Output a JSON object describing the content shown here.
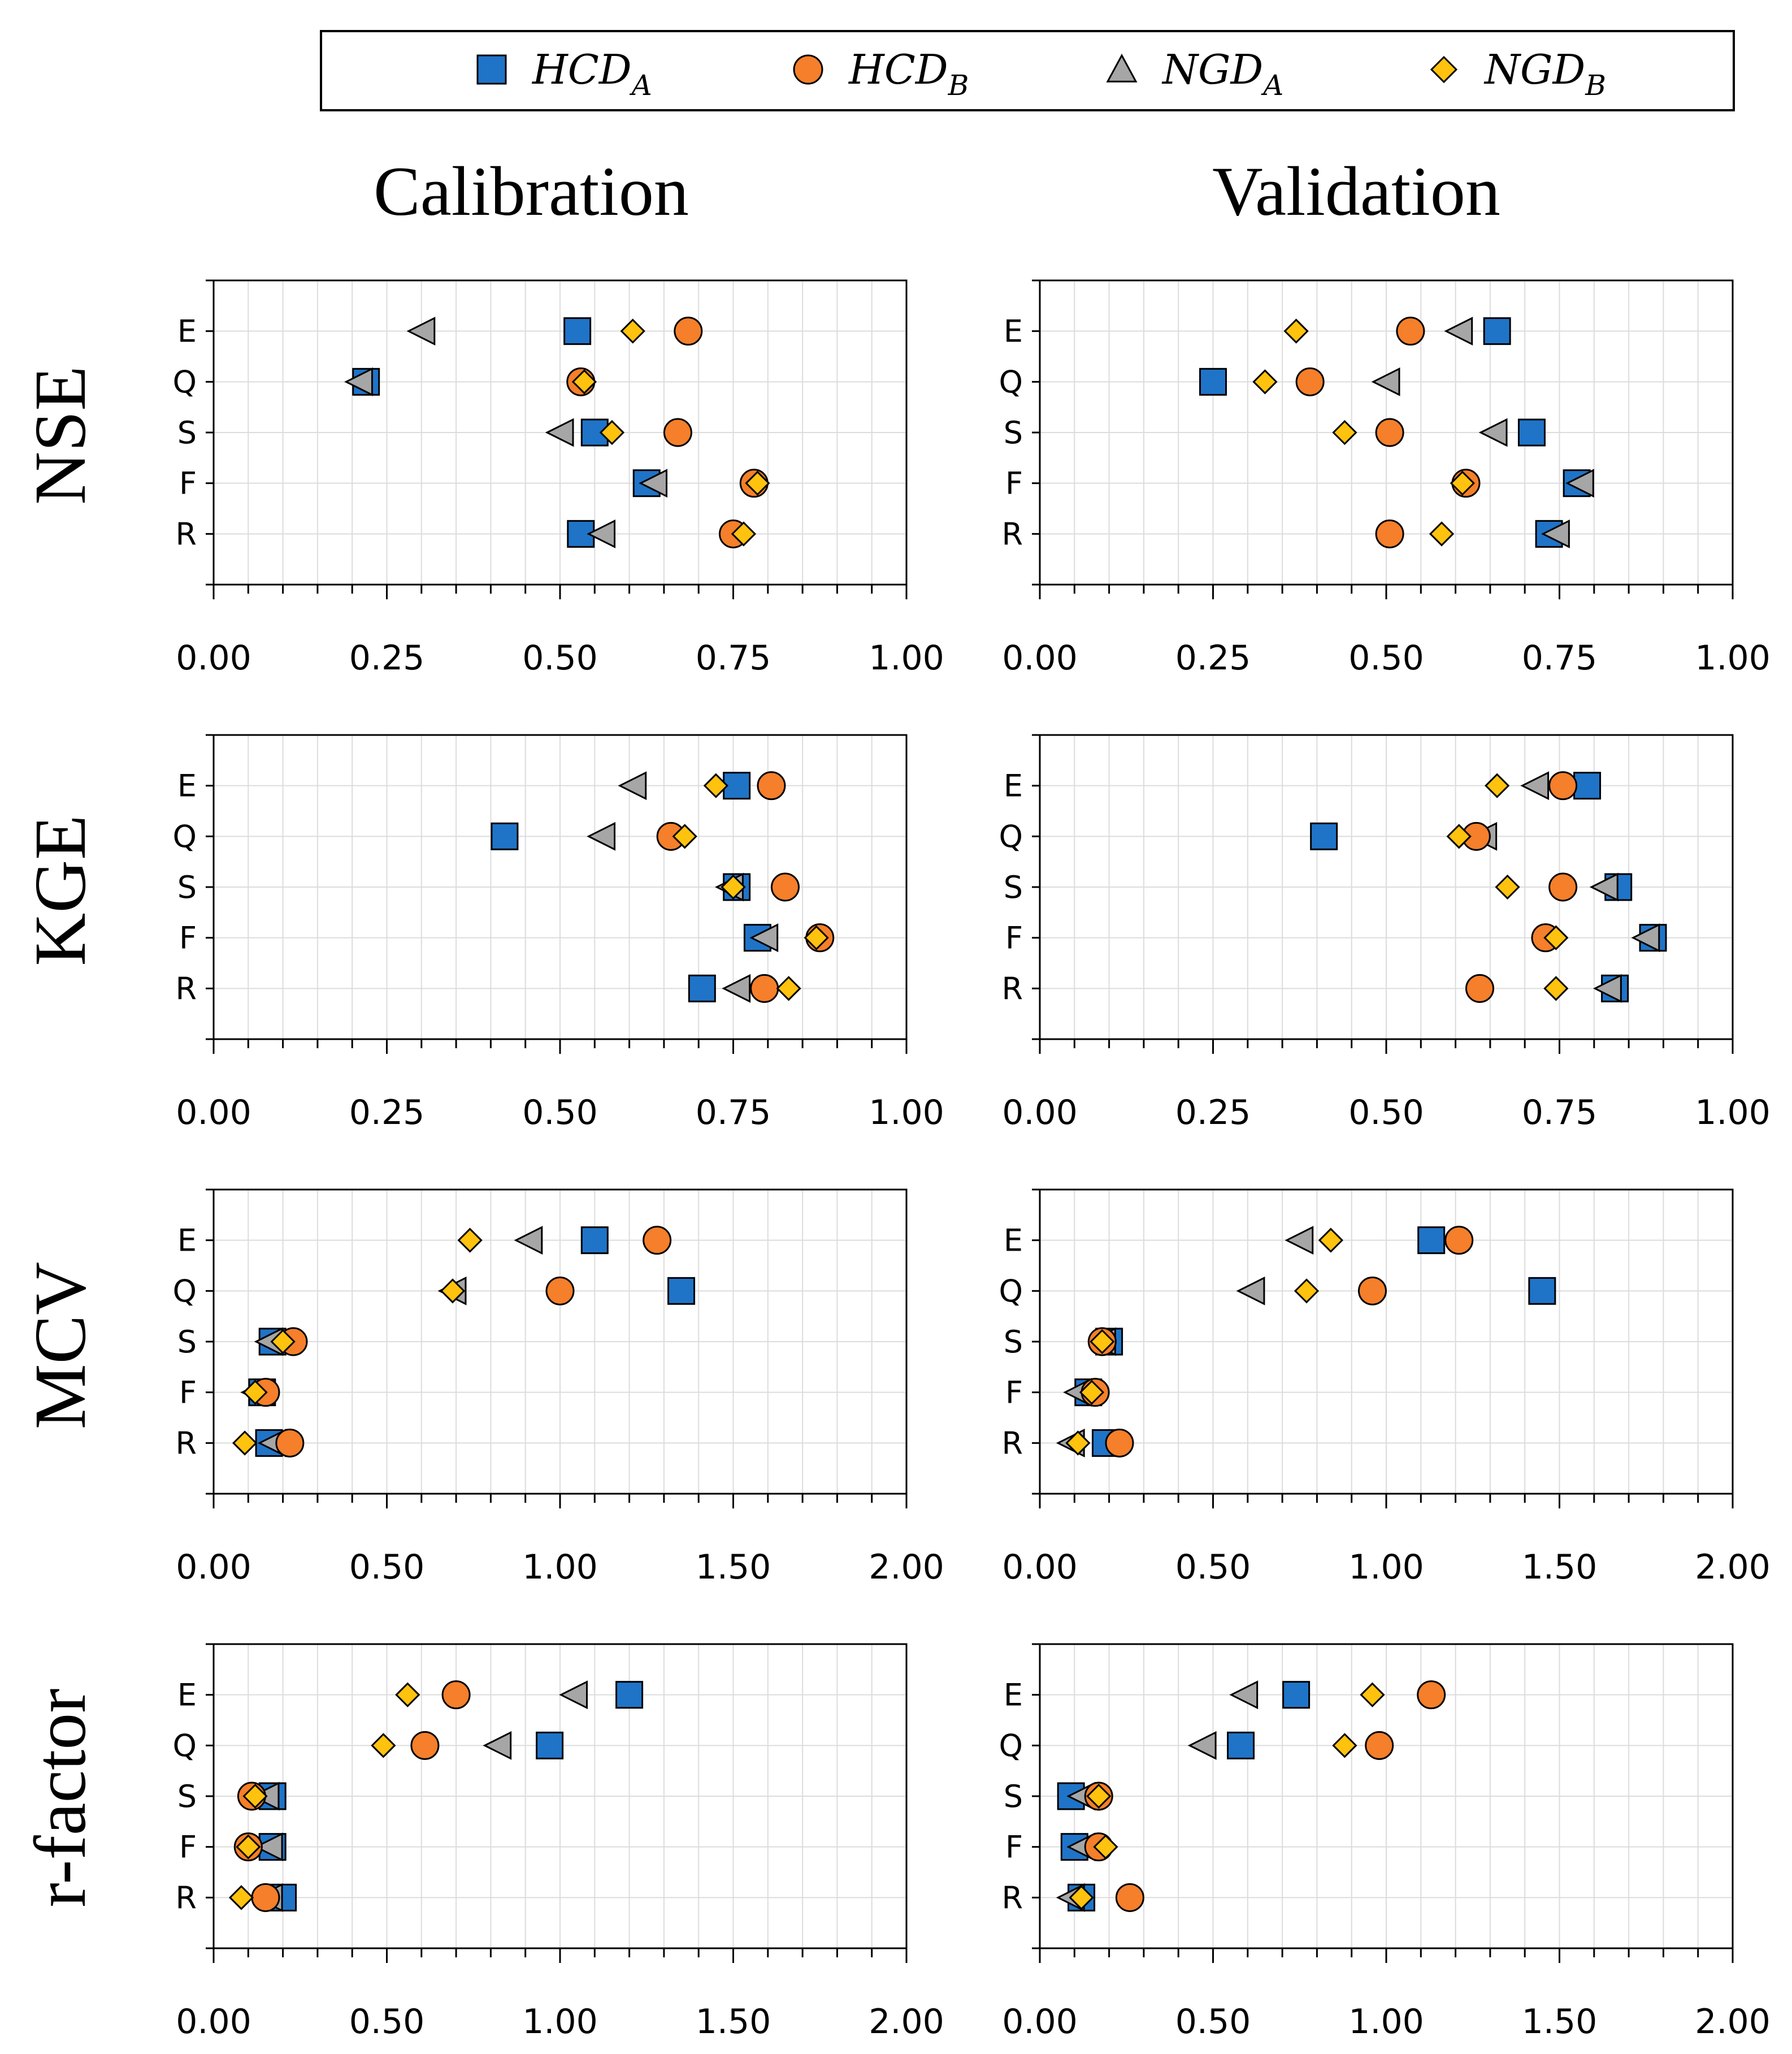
{
  "colors": {
    "HCD_A": "#1f74c8",
    "HCD_B": "#f57f2a",
    "NGD_A": "#a6a6a6",
    "NGD_B": "#ffc20e"
  },
  "legend": [
    {
      "key": "HCD_A",
      "base": "HCD",
      "sub": "A",
      "marker": "square"
    },
    {
      "key": "HCD_B",
      "base": "HCD",
      "sub": "B",
      "marker": "circle"
    },
    {
      "key": "NGD_A",
      "base": "NGD",
      "sub": "A",
      "marker": "triangle"
    },
    {
      "key": "NGD_B",
      "base": "NGD",
      "sub": "B",
      "marker": "diamond"
    }
  ],
  "columns": [
    "Calibration",
    "Validation"
  ],
  "chart_data": [
    {
      "type": "scatter",
      "metric": "NSE",
      "column": "Calibration",
      "categories": [
        "E",
        "Q",
        "S",
        "F",
        "R"
      ],
      "xlim": [
        0,
        1
      ],
      "grid": true,
      "xticks": [
        "0.00",
        "0.25",
        "0.50",
        "0.75",
        "1.00"
      ],
      "series": [
        {
          "name": "HCD_A",
          "values": [
            0.525,
            0.22,
            0.55,
            0.625,
            0.53
          ]
        },
        {
          "name": "HCD_B",
          "values": [
            0.685,
            0.53,
            0.67,
            0.78,
            0.75
          ]
        },
        {
          "name": "NGD_A",
          "values": [
            0.3,
            0.21,
            0.5,
            0.635,
            0.56
          ]
        },
        {
          "name": "NGD_B",
          "values": [
            0.605,
            0.535,
            0.575,
            0.785,
            0.765
          ]
        }
      ]
    },
    {
      "type": "scatter",
      "metric": "NSE",
      "column": "Validation",
      "categories": [
        "E",
        "Q",
        "S",
        "F",
        "R"
      ],
      "xlim": [
        0,
        1
      ],
      "grid": true,
      "xticks": [
        "0.00",
        "0.25",
        "0.50",
        "0.75",
        "1.00"
      ],
      "series": [
        {
          "name": "HCD_A",
          "values": [
            0.66,
            0.25,
            0.71,
            0.775,
            0.735
          ]
        },
        {
          "name": "HCD_B",
          "values": [
            0.535,
            0.39,
            0.505,
            0.615,
            0.505
          ]
        },
        {
          "name": "NGD_A",
          "values": [
            0.605,
            0.5,
            0.655,
            0.78,
            0.745
          ]
        },
        {
          "name": "NGD_B",
          "values": [
            0.37,
            0.325,
            0.44,
            0.61,
            0.58
          ]
        }
      ]
    },
    {
      "type": "scatter",
      "metric": "KGE",
      "column": "Calibration",
      "categories": [
        "E",
        "Q",
        "S",
        "F",
        "R"
      ],
      "xlim": [
        0,
        1
      ],
      "grid": true,
      "xticks": [
        "0.00",
        "0.25",
        "0.50",
        "0.75",
        "1.00"
      ],
      "series": [
        {
          "name": "HCD_A",
          "values": [
            0.755,
            0.42,
            0.755,
            0.785,
            0.705
          ]
        },
        {
          "name": "HCD_B",
          "values": [
            0.805,
            0.66,
            0.825,
            0.875,
            0.795
          ]
        },
        {
          "name": "NGD_A",
          "values": [
            0.605,
            0.56,
            0.745,
            0.795,
            0.755
          ]
        },
        {
          "name": "NGD_B",
          "values": [
            0.725,
            0.68,
            0.75,
            0.87,
            0.83
          ]
        }
      ]
    },
    {
      "type": "scatter",
      "metric": "KGE",
      "column": "Validation",
      "categories": [
        "E",
        "Q",
        "S",
        "F",
        "R"
      ],
      "xlim": [
        0,
        1
      ],
      "grid": true,
      "xticks": [
        "0.00",
        "0.25",
        "0.50",
        "0.75",
        "1.00"
      ],
      "series": [
        {
          "name": "HCD_A",
          "values": [
            0.79,
            0.41,
            0.835,
            0.885,
            0.83
          ]
        },
        {
          "name": "HCD_B",
          "values": [
            0.755,
            0.63,
            0.755,
            0.73,
            0.635
          ]
        },
        {
          "name": "NGD_A",
          "values": [
            0.715,
            0.64,
            0.815,
            0.875,
            0.82
          ]
        },
        {
          "name": "NGD_B",
          "values": [
            0.66,
            0.605,
            0.675,
            0.745,
            0.745
          ]
        }
      ]
    },
    {
      "type": "scatter",
      "metric": "MCV",
      "column": "Calibration",
      "categories": [
        "E",
        "Q",
        "S",
        "F",
        "R"
      ],
      "xlim": [
        0,
        2
      ],
      "grid": true,
      "xticks": [
        "0.00",
        "0.50",
        "1.00",
        "1.50",
        "2.00"
      ],
      "series": [
        {
          "name": "HCD_A",
          "values": [
            1.1,
            1.35,
            0.17,
            0.14,
            0.16
          ]
        },
        {
          "name": "HCD_B",
          "values": [
            1.28,
            1.0,
            0.23,
            0.15,
            0.22
          ]
        },
        {
          "name": "NGD_A",
          "values": [
            0.91,
            0.69,
            0.16,
            0.12,
            0.17
          ]
        },
        {
          "name": "NGD_B",
          "values": [
            0.74,
            0.69,
            0.2,
            0.12,
            0.09
          ]
        }
      ]
    },
    {
      "type": "scatter",
      "metric": "MCV",
      "column": "Validation",
      "categories": [
        "E",
        "Q",
        "S",
        "F",
        "R"
      ],
      "xlim": [
        0,
        2
      ],
      "grid": true,
      "xticks": [
        "0.00",
        "0.50",
        "1.00",
        "1.50",
        "2.00"
      ],
      "series": [
        {
          "name": "HCD_A",
          "values": [
            1.13,
            1.45,
            0.2,
            0.14,
            0.19
          ]
        },
        {
          "name": "HCD_B",
          "values": [
            1.21,
            0.96,
            0.18,
            0.16,
            0.23
          ]
        },
        {
          "name": "NGD_A",
          "values": [
            0.75,
            0.61,
            0.18,
            0.11,
            0.09
          ]
        },
        {
          "name": "NGD_B",
          "values": [
            0.84,
            0.77,
            0.18,
            0.15,
            0.11
          ]
        }
      ]
    },
    {
      "type": "scatter",
      "metric": "r-factor",
      "column": "Calibration",
      "categories": [
        "E",
        "Q",
        "S",
        "F",
        "R"
      ],
      "xlim": [
        0,
        2
      ],
      "grid": true,
      "xticks": [
        "0.00",
        "0.50",
        "1.00",
        "1.50",
        "2.00"
      ],
      "series": [
        {
          "name": "HCD_A",
          "values": [
            1.2,
            0.97,
            0.17,
            0.17,
            0.2
          ]
        },
        {
          "name": "HCD_B",
          "values": [
            0.7,
            0.61,
            0.11,
            0.1,
            0.15
          ]
        },
        {
          "name": "NGD_A",
          "values": [
            1.04,
            0.82,
            0.15,
            0.16,
            0.16
          ]
        },
        {
          "name": "NGD_B",
          "values": [
            0.56,
            0.49,
            0.12,
            0.1,
            0.08
          ]
        }
      ]
    },
    {
      "type": "scatter",
      "metric": "r-factor",
      "column": "Validation",
      "categories": [
        "E",
        "Q",
        "S",
        "F",
        "R"
      ],
      "xlim": [
        0,
        2
      ],
      "grid": true,
      "xticks": [
        "0.00",
        "0.50",
        "1.00",
        "1.50",
        "2.00"
      ],
      "series": [
        {
          "name": "HCD_A",
          "values": [
            0.74,
            0.58,
            0.09,
            0.1,
            0.12
          ]
        },
        {
          "name": "HCD_B",
          "values": [
            1.13,
            0.98,
            0.17,
            0.17,
            0.26
          ]
        },
        {
          "name": "NGD_A",
          "values": [
            0.59,
            0.47,
            0.12,
            0.12,
            0.09
          ]
        },
        {
          "name": "NGD_B",
          "values": [
            0.96,
            0.88,
            0.17,
            0.19,
            0.12
          ]
        }
      ]
    }
  ]
}
